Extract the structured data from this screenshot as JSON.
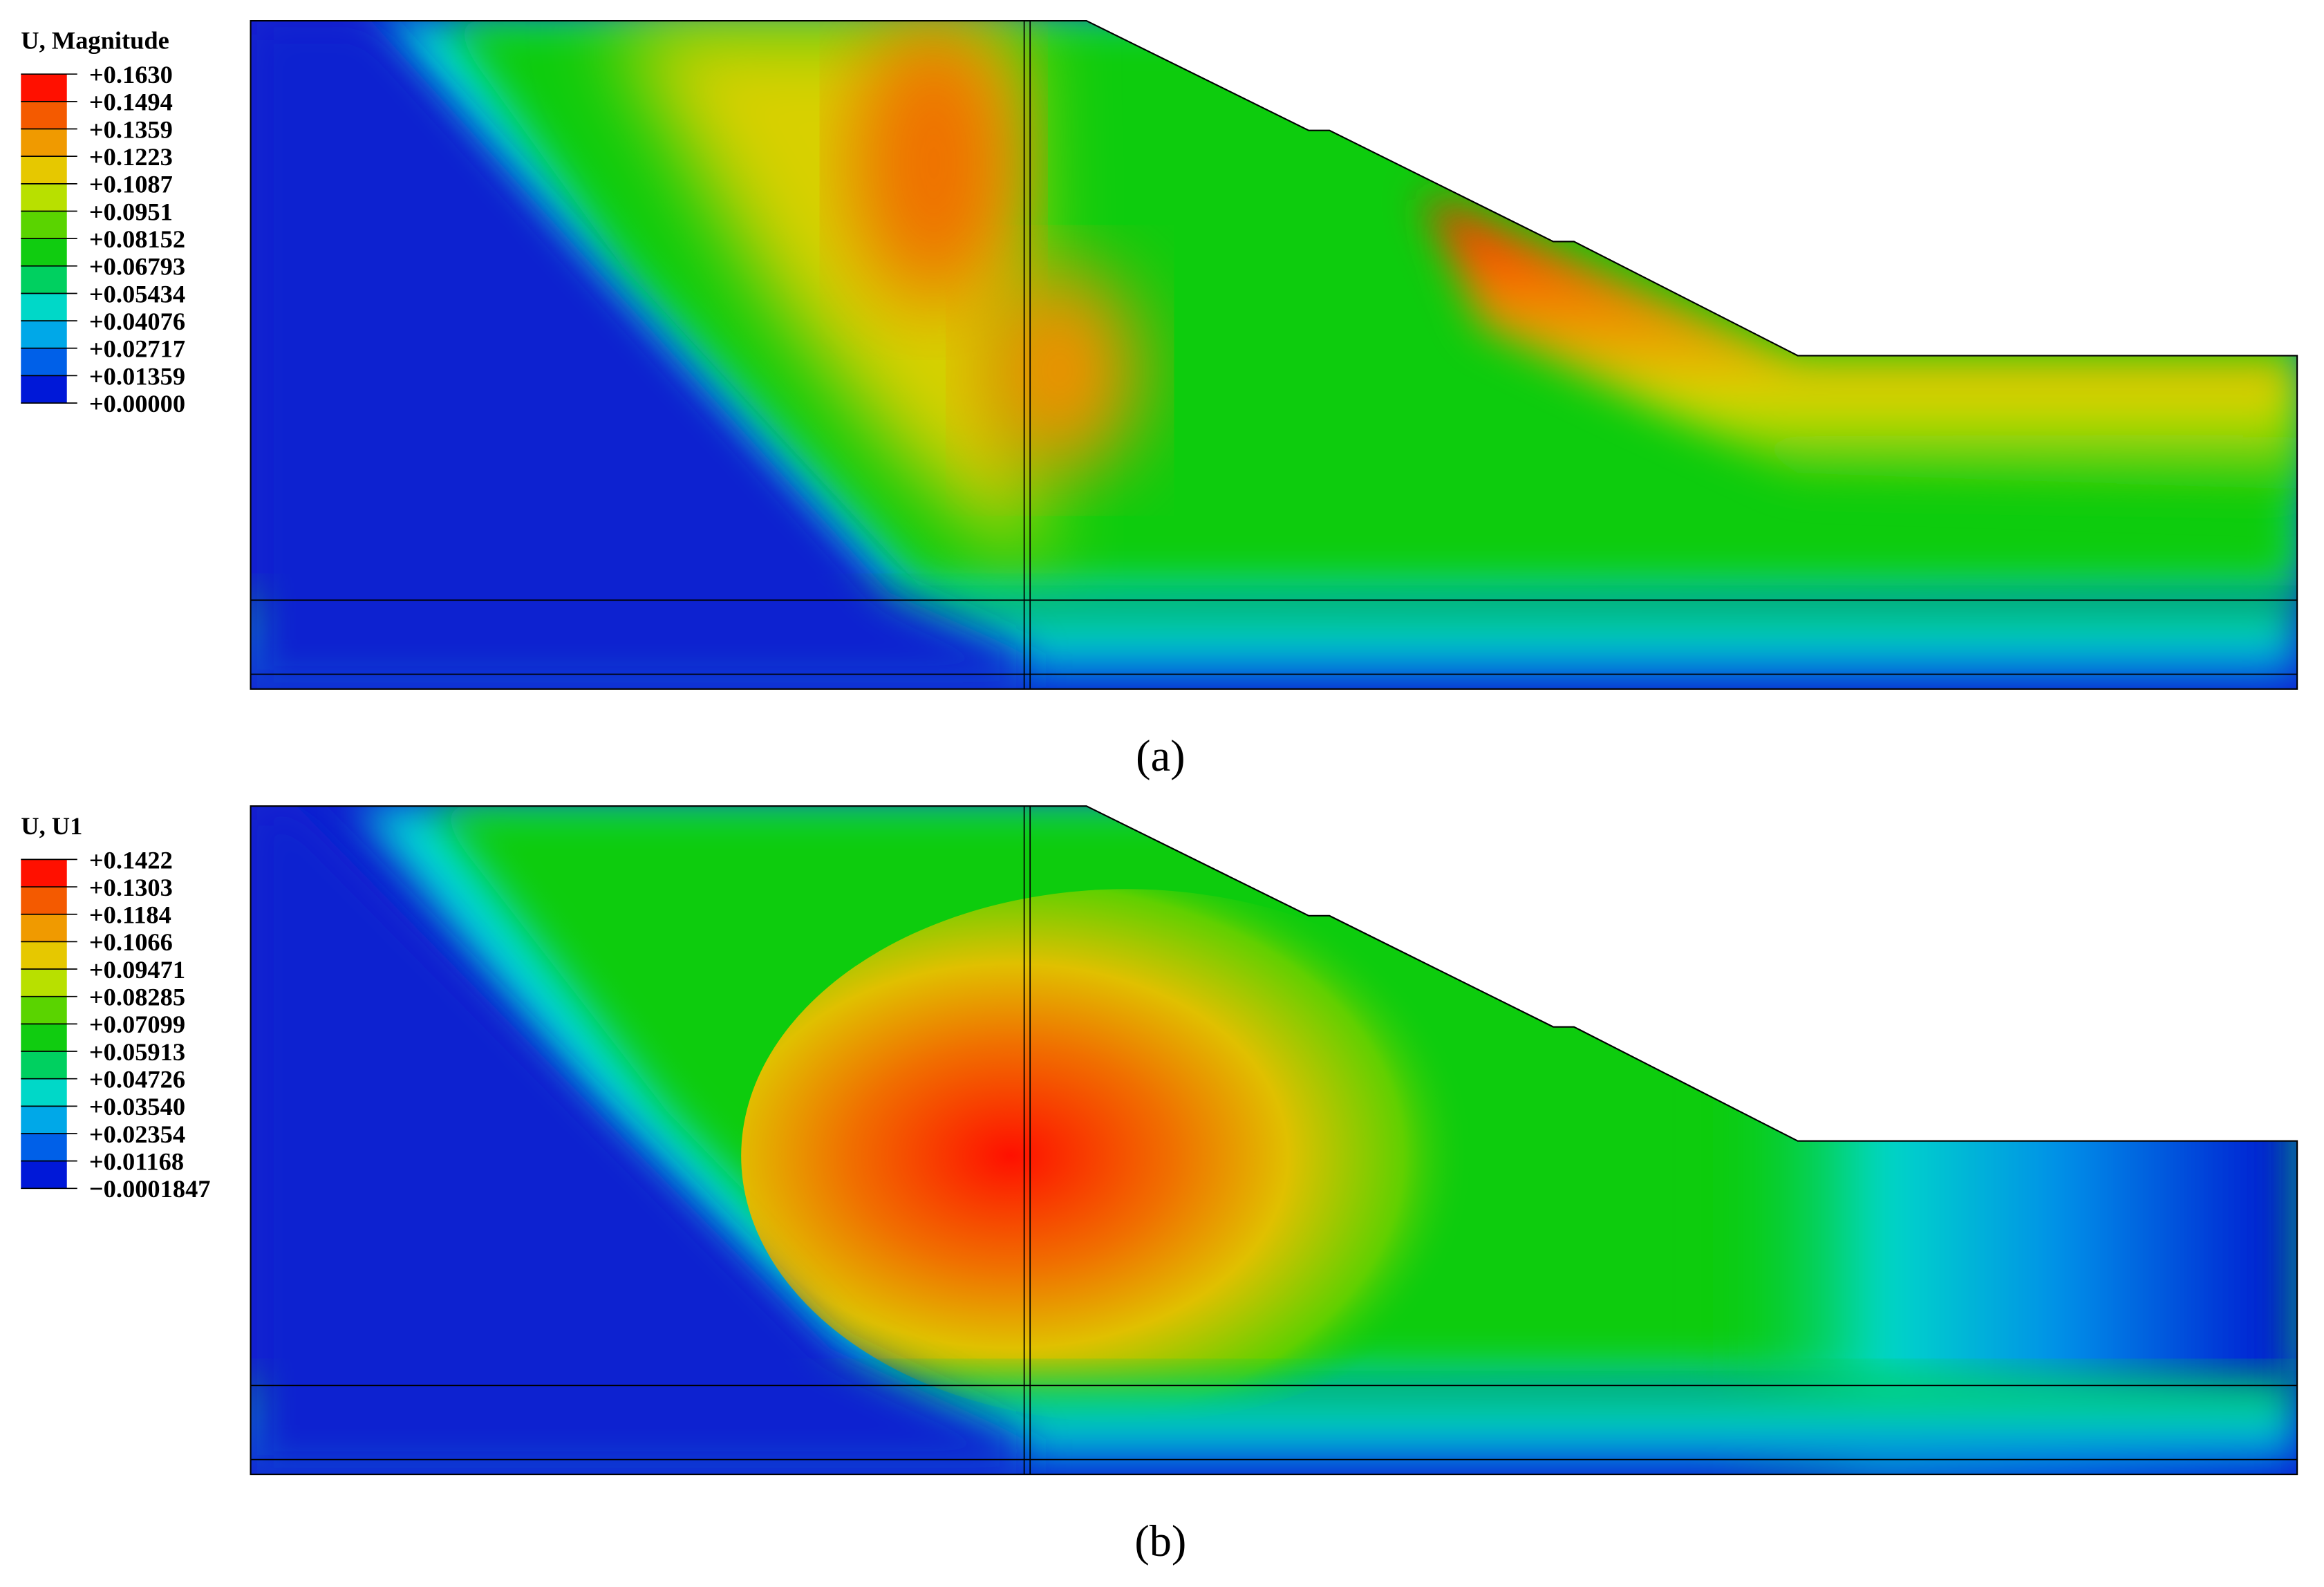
{
  "panels": [
    {
      "legend_title": "U, Magnitude",
      "legend_labels": [
        "+0.1630",
        "+0.1494",
        "+0.1359",
        "+0.1223",
        "+0.1087",
        "+0.0951",
        "+0.08152",
        "+0.06793",
        "+0.05434",
        "+0.04076",
        "+0.02717",
        "+0.01359",
        "+0.00000"
      ],
      "caption": "(a)"
    },
    {
      "legend_title": "U, U1",
      "legend_labels": [
        "+0.1422",
        "+0.1303",
        "+0.1184",
        "+0.1066",
        "+0.09471",
        "+0.08285",
        "+0.07099",
        "+0.05913",
        "+0.04726",
        "+0.03540",
        "+0.02354",
        "+0.01168",
        "−0.0001847"
      ],
      "caption": "(b)"
    }
  ]
}
